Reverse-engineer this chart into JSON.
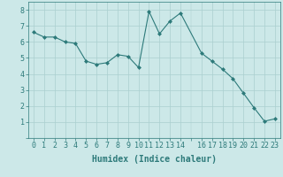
{
  "x": [
    0,
    1,
    2,
    3,
    4,
    5,
    6,
    7,
    8,
    9,
    10,
    11,
    12,
    13,
    14,
    16,
    17,
    18,
    19,
    20,
    21,
    22,
    23
  ],
  "y": [
    6.6,
    6.3,
    6.3,
    6.0,
    5.9,
    4.8,
    4.6,
    4.7,
    5.2,
    5.1,
    4.4,
    7.9,
    6.5,
    7.3,
    7.8,
    5.3,
    4.8,
    4.3,
    3.7,
    2.8,
    1.9,
    1.05,
    1.2
  ],
  "line_color": "#2d7a7a",
  "marker_color": "#2d7a7a",
  "bg_color": "#cce8e8",
  "grid_color": "#aacfcf",
  "xlabel": "Humidex (Indice chaleur)",
  "xlim": [
    -0.5,
    23.5
  ],
  "ylim": [
    0,
    8.5
  ],
  "xticks": [
    0,
    1,
    2,
    3,
    4,
    5,
    6,
    7,
    8,
    9,
    10,
    11,
    12,
    13,
    14,
    16,
    17,
    18,
    19,
    20,
    21,
    22,
    23
  ],
  "yticks": [
    1,
    2,
    3,
    4,
    5,
    6,
    7,
    8
  ],
  "tick_color": "#2d7a7a",
  "label_color": "#2d7a7a",
  "font_size_axis": 6,
  "font_size_label": 7
}
